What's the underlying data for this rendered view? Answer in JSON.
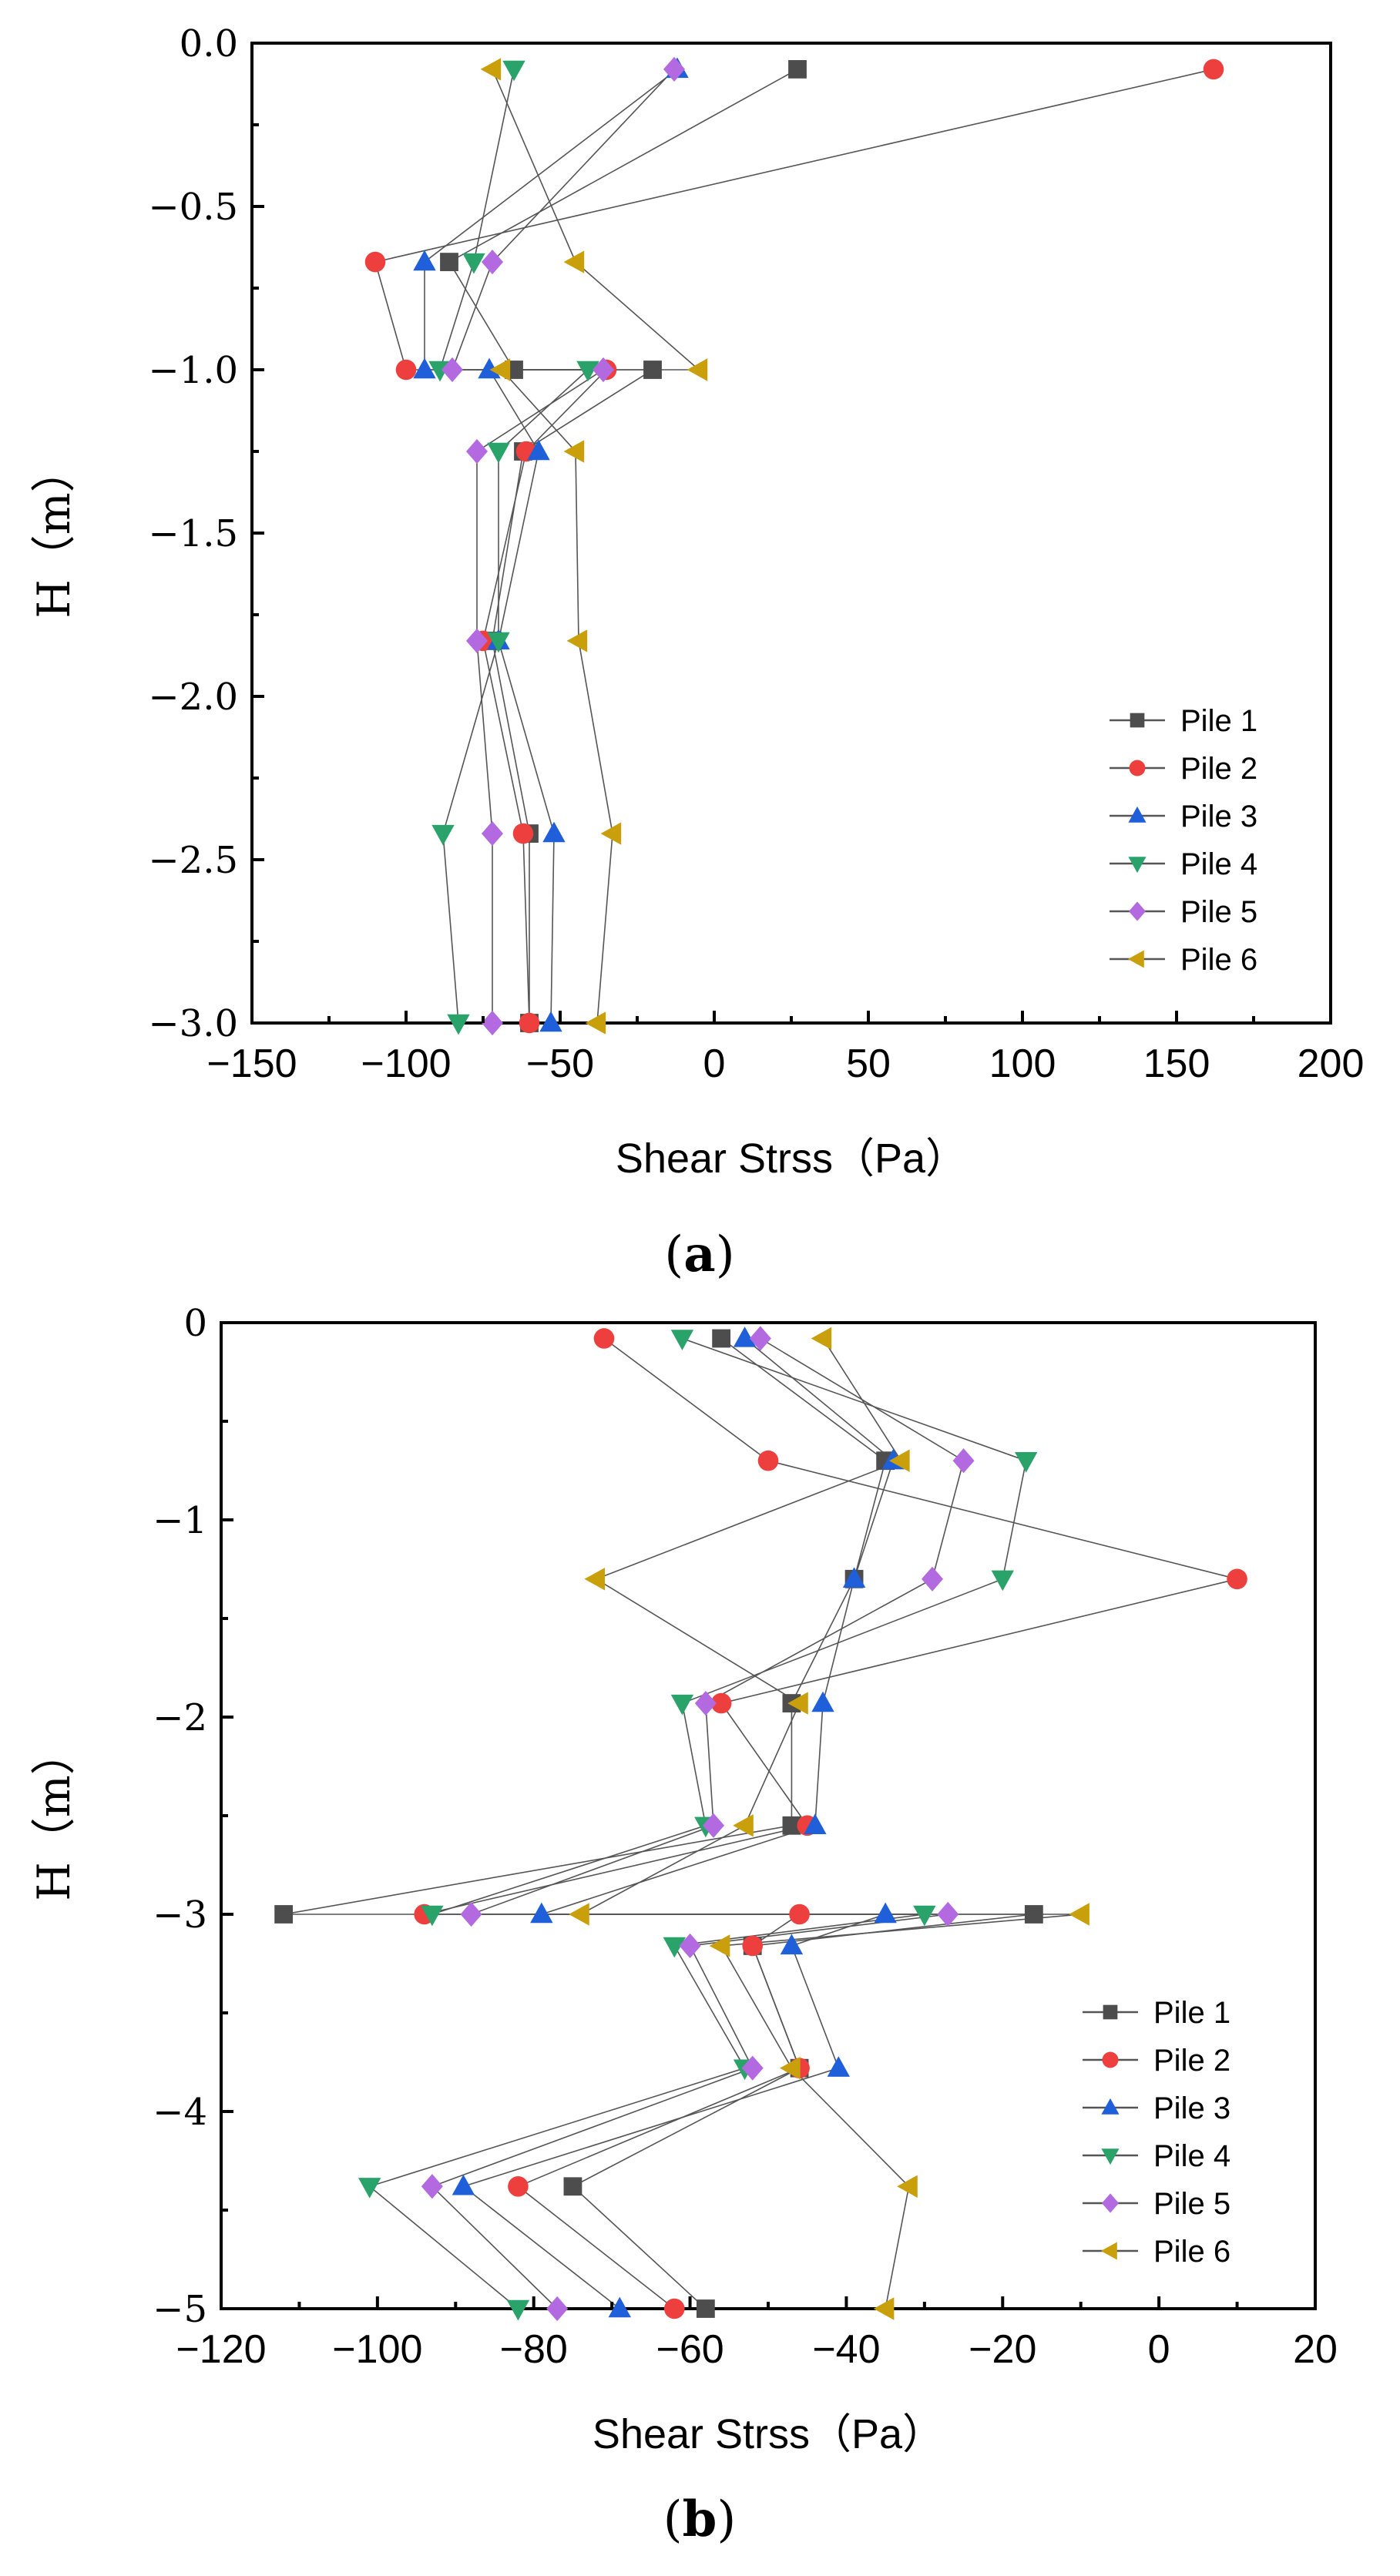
{
  "chart_data": [
    {
      "type": "line",
      "caption": "a",
      "xlabel": "Shear Strss（Pa）",
      "ylabel": "H（m）",
      "xlim": [
        -150,
        200
      ],
      "ylim": [
        -3.0,
        0.0
      ],
      "xticks": [
        -150,
        -100,
        -50,
        0,
        50,
        100,
        150,
        200
      ],
      "xtick_labels": [
        "−150",
        "−100",
        "−50",
        "0",
        "50",
        "100",
        "150",
        "200"
      ],
      "yticks": [
        0.0,
        -0.5,
        -1.0,
        -1.5,
        -2.0,
        -2.5,
        -3.0
      ],
      "ytick_labels": [
        "0.0",
        "−0.5",
        "−1.0",
        "−1.5",
        "−2.0",
        "−2.5",
        "−3.0"
      ],
      "legend_position": "bottom-right",
      "series": [
        {
          "name": "Pile 1",
          "marker": "square",
          "color": "#4d4d4d",
          "points": [
            [
              27,
              -0.08
            ],
            [
              -86,
              -0.67
            ],
            [
              -65,
              -1.0
            ],
            [
              -20,
              -1.0
            ],
            [
              -62,
              -1.25
            ],
            [
              -72,
              -1.83
            ],
            [
              -60,
              -2.42
            ],
            [
              -60,
              -3.0
            ]
          ]
        },
        {
          "name": "Pile 2",
          "marker": "circle",
          "color": "#ee3f3f",
          "points": [
            [
              162,
              -0.08
            ],
            [
              -110,
              -0.67
            ],
            [
              -100,
              -1.0
            ],
            [
              -35,
              -1.0
            ],
            [
              -61,
              -1.25
            ],
            [
              -75,
              -1.83
            ],
            [
              -62,
              -2.42
            ],
            [
              -60,
              -3.0
            ]
          ]
        },
        {
          "name": "Pile 3",
          "marker": "triangle-up",
          "color": "#1f5fd9",
          "points": [
            [
              -12,
              -0.08
            ],
            [
              -94,
              -0.67
            ],
            [
              -94,
              -1.0
            ],
            [
              -73,
              -1.0
            ],
            [
              -57,
              -1.25
            ],
            [
              -70,
              -1.83
            ],
            [
              -52,
              -2.42
            ],
            [
              -53,
              -3.0
            ]
          ]
        },
        {
          "name": "Pile 4",
          "marker": "triangle-down",
          "color": "#2aa36a",
          "points": [
            [
              -65,
              -0.08
            ],
            [
              -78,
              -0.67
            ],
            [
              -89,
              -1.0
            ],
            [
              -41,
              -1.0
            ],
            [
              -70,
              -1.25
            ],
            [
              -70,
              -1.83
            ],
            [
              -88,
              -2.42
            ],
            [
              -83,
              -3.0
            ]
          ]
        },
        {
          "name": "Pile 5",
          "marker": "diamond",
          "color": "#b36ae0",
          "points": [
            [
              -13,
              -0.08
            ],
            [
              -72,
              -0.67
            ],
            [
              -85,
              -1.0
            ],
            [
              -36,
              -1.0
            ],
            [
              -77,
              -1.25
            ],
            [
              -77,
              -1.83
            ],
            [
              -72,
              -2.42
            ],
            [
              -72,
              -3.0
            ]
          ]
        },
        {
          "name": "Pile 6",
          "marker": "triangle-left",
          "color": "#c9a00c",
          "points": [
            [
              -72,
              -0.08
            ],
            [
              -45,
              -0.67
            ],
            [
              -5,
              -1.0
            ],
            [
              -69,
              -1.0
            ],
            [
              -45,
              -1.25
            ],
            [
              -44,
              -1.83
            ],
            [
              -33,
              -2.42
            ],
            [
              -38,
              -3.0
            ]
          ]
        }
      ]
    },
    {
      "type": "line",
      "caption": "b",
      "xlabel": "Shear Strss（Pa）",
      "ylabel": "H（m）",
      "xlim": [
        -120,
        20
      ],
      "ylim": [
        -5,
        0
      ],
      "xticks": [
        -120,
        -100,
        -80,
        -60,
        -40,
        -20,
        0,
        20
      ],
      "xtick_labels": [
        "−120",
        "−100",
        "−80",
        "−60",
        "−40",
        "−20",
        "0",
        "20"
      ],
      "yticks": [
        0,
        -1,
        -2,
        -3,
        -4,
        -5
      ],
      "ytick_labels": [
        "0",
        "−1",
        "−2",
        "−3",
        "−4",
        "−5"
      ],
      "legend_position": "bottom-right",
      "series": [
        {
          "name": "Pile 1",
          "marker": "square",
          "color": "#4d4d4d",
          "points": [
            [
              -56,
              -0.08
            ],
            [
              -35,
              -0.7
            ],
            [
              -39,
              -1.3
            ],
            [
              -47,
              -1.93
            ],
            [
              -47,
              -2.55
            ],
            [
              -112,
              -3.0
            ],
            [
              -16,
              -3.0
            ],
            [
              -52,
              -3.16
            ],
            [
              -46,
              -3.78
            ],
            [
              -75,
              -4.38
            ],
            [
              -58,
              -5.0
            ]
          ]
        },
        {
          "name": "Pile 2",
          "marker": "circle",
          "color": "#ee3f3f",
          "points": [
            [
              -71,
              -0.08
            ],
            [
              -50,
              -0.7
            ],
            [
              10,
              -1.3
            ],
            [
              -56,
              -1.93
            ],
            [
              -45,
              -2.55
            ],
            [
              -94,
              -3.0
            ],
            [
              -46,
              -3.0
            ],
            [
              -52,
              -3.16
            ],
            [
              -46,
              -3.78
            ],
            [
              -82,
              -4.38
            ],
            [
              -62,
              -5.0
            ]
          ]
        },
        {
          "name": "Pile 3",
          "marker": "triangle-up",
          "color": "#1f5fd9",
          "points": [
            [
              -53,
              -0.08
            ],
            [
              -34,
              -0.7
            ],
            [
              -39,
              -1.3
            ],
            [
              -43,
              -1.93
            ],
            [
              -44,
              -2.55
            ],
            [
              -79,
              -3.0
            ],
            [
              -35,
              -3.0
            ],
            [
              -47,
              -3.16
            ],
            [
              -41,
              -3.78
            ],
            [
              -89,
              -4.38
            ],
            [
              -69,
              -5.0
            ]
          ]
        },
        {
          "name": "Pile 4",
          "marker": "triangle-down",
          "color": "#2aa36a",
          "points": [
            [
              -61,
              -0.08
            ],
            [
              -17,
              -0.7
            ],
            [
              -20,
              -1.3
            ],
            [
              -61,
              -1.93
            ],
            [
              -58,
              -2.55
            ],
            [
              -93,
              -3.0
            ],
            [
              -30,
              -3.0
            ],
            [
              -62,
              -3.16
            ],
            [
              -53,
              -3.78
            ],
            [
              -101,
              -4.38
            ],
            [
              -82,
              -5.0
            ]
          ]
        },
        {
          "name": "Pile 5",
          "marker": "diamond",
          "color": "#b36ae0",
          "points": [
            [
              -51,
              -0.08
            ],
            [
              -25,
              -0.7
            ],
            [
              -29,
              -1.3
            ],
            [
              -58,
              -1.93
            ],
            [
              -57,
              -2.55
            ],
            [
              -88,
              -3.0
            ],
            [
              -27,
              -3.0
            ],
            [
              -60,
              -3.16
            ],
            [
              -52,
              -3.78
            ],
            [
              -93,
              -4.38
            ],
            [
              -77,
              -5.0
            ]
          ]
        },
        {
          "name": "Pile 6",
          "marker": "triangle-left",
          "color": "#c9a00c",
          "points": [
            [
              -43,
              -0.08
            ],
            [
              -33,
              -0.7
            ],
            [
              -72,
              -1.3
            ],
            [
              -46,
              -1.93
            ],
            [
              -53,
              -2.55
            ],
            [
              -74,
              -3.0
            ],
            [
              -10,
              -3.0
            ],
            [
              -56,
              -3.16
            ],
            [
              -47,
              -3.78
            ],
            [
              -32,
              -4.38
            ],
            [
              -35,
              -5.0
            ]
          ]
        }
      ]
    }
  ]
}
